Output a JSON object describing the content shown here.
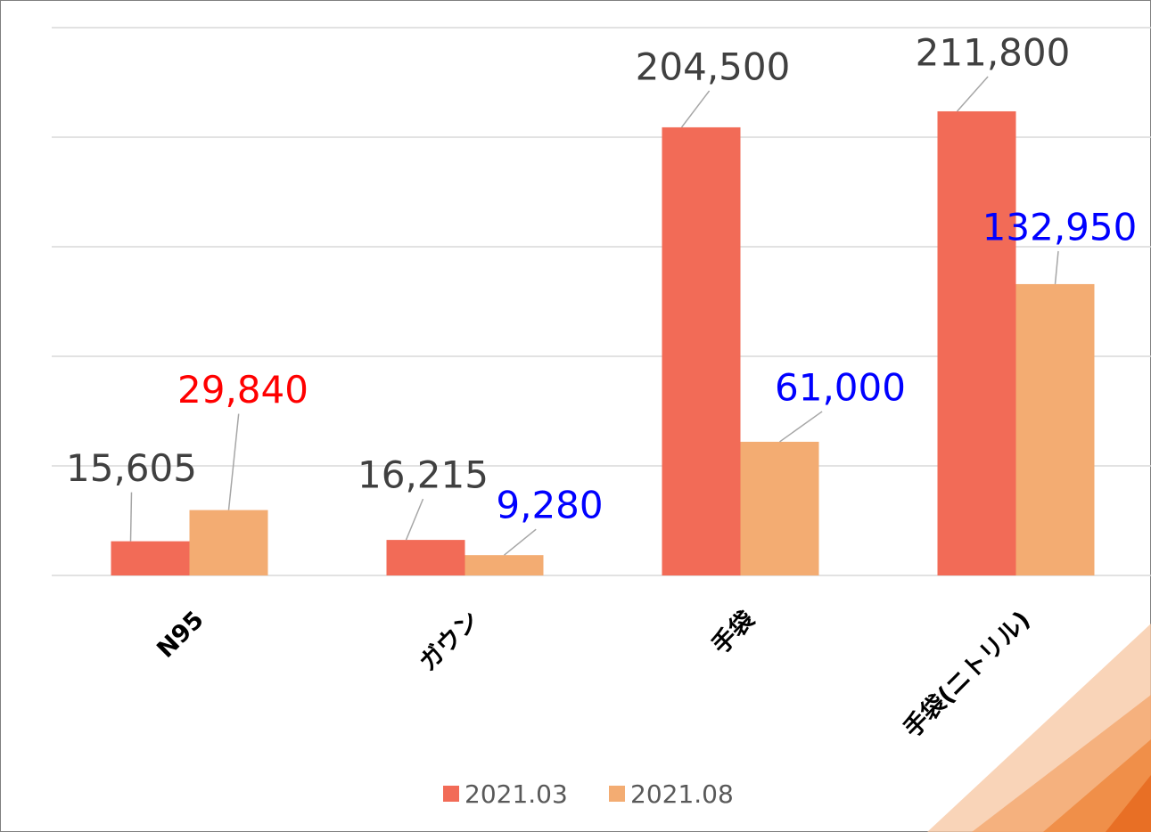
{
  "chart_data": {
    "type": "bar",
    "categories": [
      "N95",
      "ガウン",
      "手袋",
      "手袋(ニトリル)"
    ],
    "series": [
      {
        "name": "2021.03",
        "color": "#f26b57",
        "values": [
          15605,
          16215,
          204500,
          211800
        ],
        "value_labels": [
          "15,605",
          "16,215",
          "204,500",
          "211,800"
        ],
        "value_label_colors": [
          "#404040",
          "#404040",
          "#404040",
          "#404040"
        ]
      },
      {
        "name": "2021.08",
        "color": "#f3ac72",
        "values": [
          29840,
          9280,
          61000,
          132950
        ],
        "value_labels": [
          "29,840",
          "9,280",
          "61,000",
          "132,950"
        ],
        "value_label_colors": [
          "#ff0000",
          "#0000ff",
          "#0000ff",
          "#0000ff"
        ]
      }
    ],
    "ylim": [
      0,
      250000
    ],
    "yticks": [
      0,
      50000,
      100000,
      150000,
      200000,
      250000
    ],
    "grid": true,
    "legend": "bottom"
  }
}
